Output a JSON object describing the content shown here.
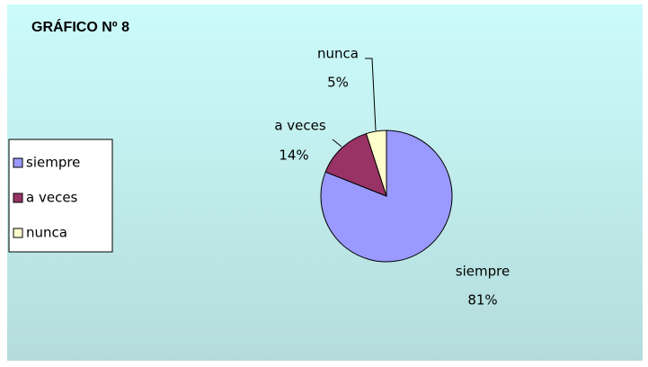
{
  "chart_data": {
    "type": "pie",
    "title": "GRÁFICO Nº 8",
    "categories": [
      "siempre",
      "a veces",
      "nunca"
    ],
    "values": [
      81,
      14,
      5
    ],
    "value_labels": [
      "81%",
      "14%",
      "5%"
    ],
    "colors": [
      "#9999ff",
      "#993366",
      "#ffffcc"
    ],
    "legend": "left"
  }
}
